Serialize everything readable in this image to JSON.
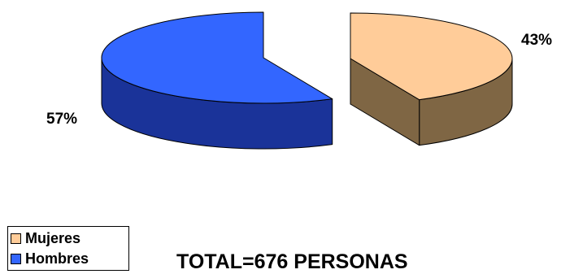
{
  "chart_data": {
    "type": "pie",
    "style": "3d-exploded",
    "labels": [
      "Mujeres",
      "Hombres"
    ],
    "values": [
      43,
      57
    ],
    "unit": "%",
    "data_labels": [
      "43%",
      "57%"
    ],
    "colors": {
      "Mujeres": {
        "top": "#ffcc99",
        "side": "#7f6644"
      },
      "Hombres": {
        "top": "#3366ff",
        "side": "#1a3399"
      }
    },
    "legend_position": "bottom-left",
    "total_label": "TOTAL=676 PERSONAS"
  },
  "legend": {
    "items": [
      {
        "label": "Mujeres",
        "color": "#ffcc99"
      },
      {
        "label": "Hombres",
        "color": "#3366ff"
      }
    ]
  }
}
